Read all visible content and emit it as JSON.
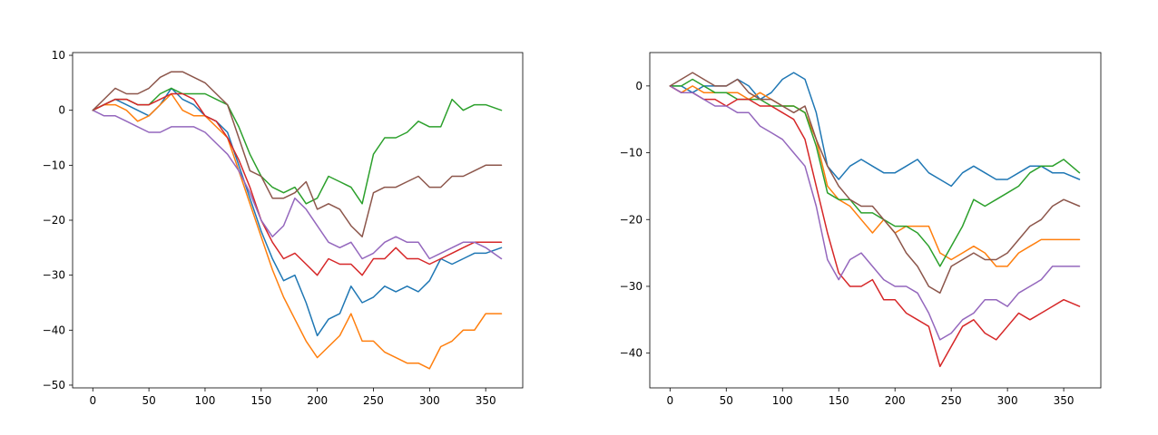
{
  "chart_data": [
    {
      "type": "line",
      "title": "",
      "xlabel": "",
      "ylabel": "",
      "xlim": [
        -18,
        383
      ],
      "ylim": [
        -50.5,
        10.5
      ],
      "xticks": [
        0,
        50,
        100,
        150,
        200,
        250,
        300,
        350
      ],
      "yticks": [
        10,
        0,
        -10,
        -20,
        -30,
        -40,
        -50
      ],
      "grid": false,
      "legend": "none",
      "x": [
        0,
        10,
        20,
        30,
        40,
        50,
        60,
        70,
        80,
        90,
        100,
        110,
        120,
        130,
        140,
        150,
        160,
        170,
        180,
        190,
        200,
        210,
        220,
        230,
        240,
        250,
        260,
        270,
        280,
        290,
        300,
        310,
        320,
        330,
        340,
        350,
        364
      ],
      "series": [
        {
          "color": "#1f77b4",
          "values": [
            0,
            1,
            2,
            1,
            0,
            -1,
            1,
            4,
            2,
            1,
            -1,
            -2,
            -4,
            -10,
            -16,
            -22,
            -27,
            -31,
            -30,
            -35,
            -41,
            -38,
            -37,
            -32,
            -35,
            -34,
            -32,
            -33,
            -32,
            -33,
            -31,
            -27,
            -28,
            -27,
            -26,
            -26,
            -25
          ]
        },
        {
          "color": "#ff7f0e",
          "values": [
            0,
            1,
            1,
            0,
            -2,
            -1,
            1,
            3,
            0,
            -1,
            -1,
            -3,
            -5,
            -11,
            -17,
            -23,
            -29,
            -34,
            -38,
            -42,
            -45,
            -43,
            -41,
            -37,
            -42,
            -42,
            -44,
            -45,
            -46,
            -46,
            -47,
            -43,
            -42,
            -40,
            -40,
            -37,
            -37
          ]
        },
        {
          "color": "#2ca02c",
          "values": [
            0,
            1,
            2,
            2,
            1,
            1,
            3,
            4,
            3,
            3,
            3,
            2,
            1,
            -3,
            -8,
            -12,
            -14,
            -15,
            -14,
            -17,
            -16,
            -12,
            -13,
            -14,
            -17,
            -8,
            -5,
            -5,
            -4,
            -2,
            -3,
            -3,
            2,
            0,
            1,
            1,
            0
          ]
        },
        {
          "color": "#d62728",
          "values": [
            0,
            1,
            2,
            2,
            1,
            1,
            2,
            3,
            3,
            2,
            -1,
            -2,
            -5,
            -9,
            -14,
            -20,
            -24,
            -27,
            -26,
            -28,
            -30,
            -27,
            -28,
            -28,
            -30,
            -27,
            -27,
            -25,
            -27,
            -27,
            -28,
            -27,
            -26,
            -25,
            -24,
            -24,
            -24
          ]
        },
        {
          "color": "#9467bd",
          "values": [
            0,
            -1,
            -1,
            -2,
            -3,
            -4,
            -4,
            -3,
            -3,
            -3,
            -4,
            -6,
            -8,
            -11,
            -15,
            -20,
            -23,
            -21,
            -16,
            -18,
            -21,
            -24,
            -25,
            -24,
            -27,
            -26,
            -24,
            -23,
            -24,
            -24,
            -27,
            -26,
            -25,
            -24,
            -24,
            -25,
            -27
          ]
        },
        {
          "color": "#8c564b",
          "values": [
            0,
            2,
            4,
            3,
            3,
            4,
            6,
            7,
            7,
            6,
            5,
            3,
            1,
            -5,
            -11,
            -12,
            -16,
            -16,
            -15,
            -13,
            -18,
            -17,
            -18,
            -21,
            -23,
            -15,
            -14,
            -14,
            -13,
            -12,
            -14,
            -14,
            -12,
            -12,
            -11,
            -10,
            -10
          ]
        }
      ]
    },
    {
      "type": "line",
      "title": "",
      "xlabel": "",
      "ylabel": "",
      "xlim": [
        -18,
        383
      ],
      "ylim": [
        -45.2,
        5
      ],
      "xticks": [
        0,
        50,
        100,
        150,
        200,
        250,
        300,
        350
      ],
      "yticks": [
        0,
        -10,
        -20,
        -30,
        -40
      ],
      "grid": false,
      "legend": "none",
      "x": [
        0,
        10,
        20,
        30,
        40,
        50,
        60,
        70,
        80,
        90,
        100,
        110,
        120,
        130,
        140,
        150,
        160,
        170,
        180,
        190,
        200,
        210,
        220,
        230,
        240,
        250,
        260,
        270,
        280,
        290,
        300,
        310,
        320,
        330,
        340,
        350,
        364
      ],
      "series": [
        {
          "color": "#1f77b4",
          "values": [
            0,
            0,
            -1,
            0,
            0,
            0,
            1,
            0,
            -2,
            -1,
            1,
            2,
            1,
            -4,
            -12,
            -14,
            -12,
            -11,
            -12,
            -13,
            -13,
            -12,
            -11,
            -13,
            -14,
            -15,
            -13,
            -12,
            -13,
            -14,
            -14,
            -13,
            -12,
            -12,
            -13,
            -13,
            -14
          ]
        },
        {
          "color": "#ff7f0e",
          "values": [
            0,
            -1,
            0,
            -1,
            -1,
            -1,
            -1,
            -2,
            -1,
            -2,
            -3,
            -3,
            -4,
            -8,
            -15,
            -17,
            -18,
            -20,
            -22,
            -20,
            -22,
            -21,
            -21,
            -21,
            -25,
            -26,
            -25,
            -24,
            -25,
            -27,
            -27,
            -25,
            -24,
            -23,
            -23,
            -23,
            -23
          ]
        },
        {
          "color": "#2ca02c",
          "values": [
            0,
            0,
            1,
            0,
            -1,
            -1,
            -2,
            -2,
            -2,
            -3,
            -3,
            -3,
            -4,
            -9,
            -16,
            -17,
            -17,
            -19,
            -19,
            -20,
            -21,
            -21,
            -22,
            -24,
            -27,
            -24,
            -21,
            -17,
            -18,
            -17,
            -16,
            -15,
            -13,
            -12,
            -12,
            -11,
            -13
          ]
        },
        {
          "color": "#d62728",
          "values": [
            0,
            -1,
            -1,
            -2,
            -2,
            -3,
            -2,
            -2,
            -3,
            -3,
            -4,
            -5,
            -8,
            -15,
            -22,
            -28,
            -30,
            -30,
            -29,
            -32,
            -32,
            -34,
            -35,
            -36,
            -42,
            -39,
            -36,
            -35,
            -37,
            -38,
            -36,
            -34,
            -35,
            -34,
            -33,
            -32,
            -33
          ]
        },
        {
          "color": "#9467bd",
          "values": [
            0,
            -1,
            -1,
            -2,
            -3,
            -3,
            -4,
            -4,
            -6,
            -7,
            -8,
            -10,
            -12,
            -18,
            -26,
            -29,
            -26,
            -25,
            -27,
            -29,
            -30,
            -30,
            -31,
            -34,
            -38,
            -37,
            -35,
            -34,
            -32,
            -32,
            -33,
            -31,
            -30,
            -29,
            -27,
            -27,
            -27
          ]
        },
        {
          "color": "#8c564b",
          "values": [
            0,
            1,
            2,
            1,
            0,
            0,
            1,
            -1,
            -2,
            -2,
            -3,
            -4,
            -3,
            -8,
            -12,
            -15,
            -17,
            -18,
            -18,
            -20,
            -22,
            -25,
            -27,
            -30,
            -31,
            -27,
            -26,
            -25,
            -26,
            -26,
            -25,
            -23,
            -21,
            -20,
            -18,
            -17,
            -18
          ]
        }
      ]
    }
  ]
}
